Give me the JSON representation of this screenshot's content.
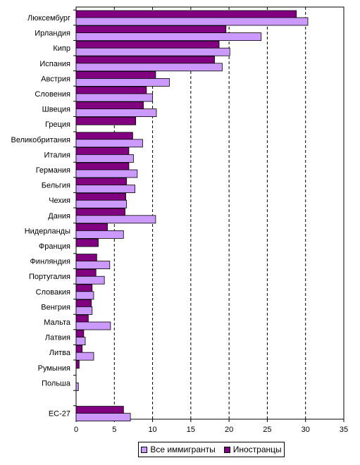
{
  "chart_data": {
    "type": "bar",
    "orientation": "horizontal",
    "categories": [
      "Люксембург",
      "Ирландия",
      "Кипр",
      "Испания",
      "Австрия",
      "Словения",
      "Швеция",
      "Греция",
      "Великобритания",
      "Италия",
      "Германия",
      "Бельгия",
      "Чехия",
      "Дания",
      "Нидерланды",
      "Франция",
      "Финляндия",
      "Португалия",
      "Словакия",
      "Венгрия",
      "Мальта",
      "Латвия",
      "Литва",
      "Румыния",
      "Польша",
      "",
      "ЕС-27"
    ],
    "series": [
      {
        "name": "Все иммигранты",
        "color": "#cc99ff",
        "values": [
          30.3,
          24.2,
          20.1,
          19.1,
          12.2,
          10.0,
          10.5,
          null,
          8.7,
          7.5,
          8.0,
          7.7,
          6.6,
          10.4,
          6.2,
          null,
          4.4,
          3.7,
          2.3,
          2.1,
          4.5,
          1.2,
          2.3,
          null,
          0.3,
          null,
          7.1
        ]
      },
      {
        "name": "Иностранцы",
        "color": "#800080",
        "values": [
          28.8,
          19.6,
          18.7,
          18.1,
          10.4,
          9.2,
          8.8,
          7.8,
          7.4,
          6.9,
          6.9,
          6.6,
          6.5,
          6.4,
          4.1,
          2.9,
          2.7,
          2.6,
          2.1,
          2.0,
          1.6,
          1.0,
          0.8,
          0.4,
          null,
          null,
          6.2
        ]
      }
    ],
    "x_ticks": [
      "0",
      "5",
      "10",
      "15",
      "20",
      "25",
      "30",
      "35"
    ],
    "xlim": [
      0,
      35
    ],
    "grid": "vertical-dashed",
    "legend": "bottom"
  }
}
